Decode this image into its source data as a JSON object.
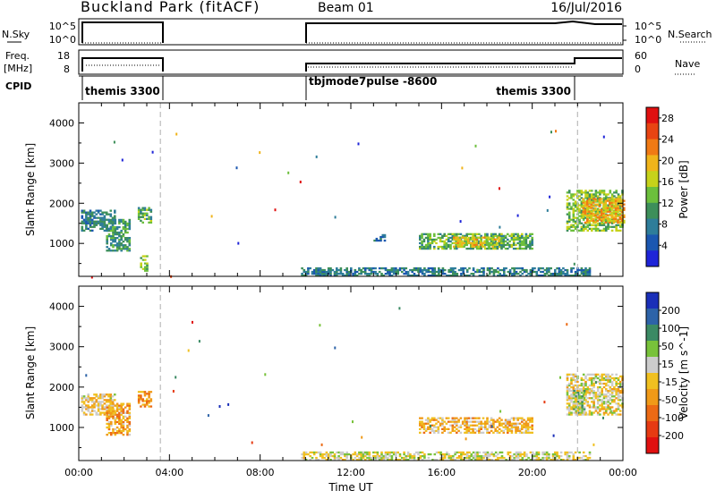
{
  "header": {
    "site": "Buckland Park (fitACF)",
    "beam": "Beam 01",
    "date": "16/Jul/2016"
  },
  "status_rows": {
    "nsky_label": "N.Sky",
    "nsky_ticks": [
      "10^5",
      "10^0"
    ],
    "nsearch_label": "N.Search",
    "nsearch_ticks": [
      "10^5",
      "10^0"
    ],
    "freq_label_1": "Freq.",
    "freq_label_2": "[MHz]",
    "freq_ticks": [
      "18",
      "8"
    ],
    "nave_label": "Nave",
    "nave_ticks": [
      "60",
      "0"
    ],
    "cpid_label": "CPID",
    "cpid_segments": [
      "themis 3300",
      "tbjmode7pulse -8600",
      "themis 3300"
    ]
  },
  "colors": {
    "power_scale": [
      "#1e24d8",
      "#1b57b0",
      "#2e7d9a",
      "#3d8f5a",
      "#6cbf3c",
      "#c6d21a",
      "#f0b41a",
      "#f07a14",
      "#e84412",
      "#e01010"
    ],
    "velocity_scale": [
      "#1a2fb8",
      "#2d63a8",
      "#3b8a64",
      "#78c23a",
      "#cccccc",
      "#f0c020",
      "#f09a18",
      "#ec6a14",
      "#e63a12",
      "#e01010"
    ]
  },
  "chart_data": [
    {
      "type": "heatmap",
      "title": "Power",
      "ylabel": "Slant Range [km]",
      "xlim_hours": [
        0,
        24
      ],
      "ylim": [
        180,
        4500
      ],
      "yticks": [
        "1000",
        "2000",
        "3000",
        "4000"
      ],
      "colorbar_label": "Power [dB]",
      "colorbar_ticks": [
        "4",
        "8",
        "12",
        "16",
        "20",
        "24",
        "28"
      ],
      "colorbar_range": [
        0,
        30
      ],
      "vertical_markers_hours": [
        3.6,
        22.0
      ],
      "regions": [
        {
          "t": [
            0.1,
            1.6
          ],
          "r": [
            1300,
            1800
          ],
          "value": 8
        },
        {
          "t": [
            1.2,
            2.2
          ],
          "r": [
            800,
            1600
          ],
          "value": 10
        },
        {
          "t": [
            2.6,
            3.2
          ],
          "r": [
            1500,
            1900
          ],
          "value": 12
        },
        {
          "t": [
            2.7,
            3.0
          ],
          "r": [
            300,
            700
          ],
          "value": 14
        },
        {
          "t": [
            9.8,
            22.5
          ],
          "r": [
            180,
            400
          ],
          "value": 8
        },
        {
          "t": [
            13.0,
            13.5
          ],
          "r": [
            1050,
            1200
          ],
          "value": 8
        },
        {
          "t": [
            15.0,
            20.0
          ],
          "r": [
            850,
            1250
          ],
          "value": 12
        },
        {
          "t": [
            16.5,
            18.5
          ],
          "r": [
            900,
            1150
          ],
          "value": 18
        },
        {
          "t": [
            21.5,
            24.0
          ],
          "r": [
            1300,
            2300
          ],
          "value": 14
        },
        {
          "t": [
            22.2,
            24.0
          ],
          "r": [
            1500,
            2100
          ],
          "value": 20
        }
      ]
    },
    {
      "type": "heatmap",
      "title": "Velocity",
      "xlabel": "Time UT",
      "ylabel": "Slant Range [km]",
      "xlim_hours": [
        0,
        24
      ],
      "ylim": [
        180,
        4500
      ],
      "xticks": [
        "00:00",
        "04:00",
        "08:00",
        "12:00",
        "16:00",
        "20:00",
        "00:00"
      ],
      "yticks": [
        "1000",
        "2000",
        "3000",
        "4000"
      ],
      "colorbar_label": "Velocity [m s^-1]",
      "colorbar_ticks": [
        "200",
        "100",
        "50",
        "15",
        "-15",
        "-50",
        "-100",
        "-200"
      ],
      "colorbar_range": [
        -250,
        250
      ],
      "vertical_markers_hours": [
        3.6,
        22.0
      ],
      "regions": [
        {
          "t": [
            0.1,
            1.6
          ],
          "r": [
            1300,
            1800
          ],
          "value": -20
        },
        {
          "t": [
            1.2,
            2.2
          ],
          "r": [
            800,
            1600
          ],
          "value": -60
        },
        {
          "t": [
            2.6,
            3.2
          ],
          "r": [
            1500,
            1900
          ],
          "value": -80
        },
        {
          "t": [
            9.8,
            22.5
          ],
          "r": [
            180,
            400
          ],
          "value": 20
        },
        {
          "t": [
            15.0,
            20.0
          ],
          "r": [
            850,
            1250
          ],
          "value": -40
        },
        {
          "t": [
            21.5,
            24.0
          ],
          "r": [
            1300,
            2300
          ],
          "value": 0
        },
        {
          "t": [
            21.8,
            22.3
          ],
          "r": [
            1300,
            1900
          ],
          "value": 60
        }
      ]
    }
  ]
}
